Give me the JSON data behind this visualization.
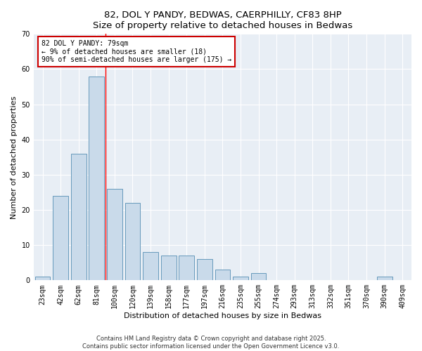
{
  "title1": "82, DOL Y PANDY, BEDWAS, CAERPHILLY, CF83 8HP",
  "title2": "Size of property relative to detached houses in Bedwas",
  "xlabel": "Distribution of detached houses by size in Bedwas",
  "ylabel": "Number of detached properties",
  "bar_color": "#c9daea",
  "bar_edge_color": "#6699bb",
  "bg_color": "#e8eef5",
  "categories": [
    "23sqm",
    "42sqm",
    "62sqm",
    "81sqm",
    "100sqm",
    "120sqm",
    "139sqm",
    "158sqm",
    "177sqm",
    "197sqm",
    "216sqm",
    "235sqm",
    "255sqm",
    "274sqm",
    "293sqm",
    "313sqm",
    "332sqm",
    "351sqm",
    "370sqm",
    "390sqm",
    "409sqm"
  ],
  "values": [
    1,
    24,
    36,
    58,
    26,
    22,
    8,
    7,
    7,
    6,
    3,
    1,
    2,
    0,
    0,
    0,
    0,
    0,
    0,
    1,
    0
  ],
  "ylim": [
    0,
    70
  ],
  "yticks": [
    0,
    10,
    20,
    30,
    40,
    50,
    60,
    70
  ],
  "vline_x": 3.5,
  "annotation_text": "82 DOL Y PANDY: 79sqm\n← 9% of detached houses are smaller (18)\n90% of semi-detached houses are larger (175) →",
  "annotation_box_color": "#cc0000",
  "footnote1": "Contains HM Land Registry data © Crown copyright and database right 2025.",
  "footnote2": "Contains public sector information licensed under the Open Government Licence v3.0.",
  "title_fontsize": 9.5,
  "xlabel_fontsize": 8,
  "ylabel_fontsize": 8,
  "tick_fontsize": 7,
  "ann_fontsize": 7,
  "footnote_fontsize": 6
}
